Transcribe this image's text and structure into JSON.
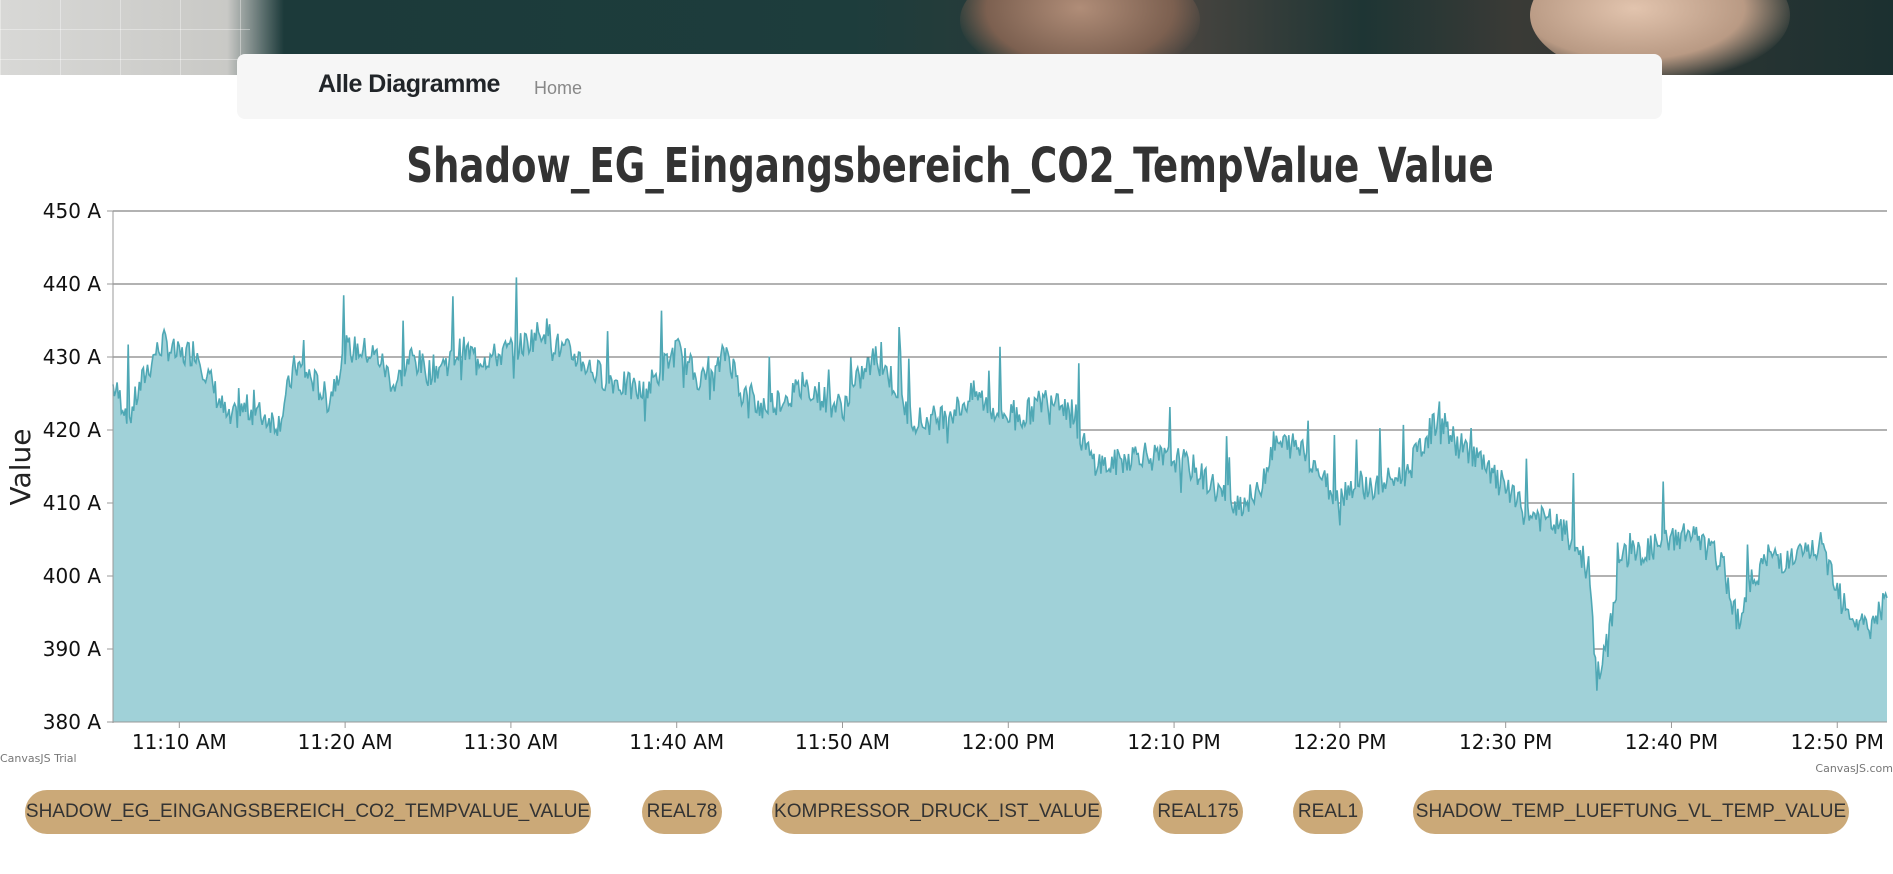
{
  "nav": {
    "brand": "Alle Diagramme",
    "home": "Home"
  },
  "chart_data": {
    "type": "area",
    "title": "Shadow_EG_Eingangsbereich_CO2_TempValue_Value",
    "ylabel": "Value",
    "xlabel": "",
    "ylim": [
      380,
      450
    ],
    "y_ticks": [
      "450 A",
      "440 A",
      "430 A",
      "420 A",
      "410 A",
      "400 A",
      "390 A",
      "380 A"
    ],
    "x_ticks": [
      "11:10 AM",
      "11:20 AM",
      "11:30 AM",
      "11:40 AM",
      "11:50 AM",
      "12:00 PM",
      "12:10 PM",
      "12:20 PM",
      "12:30 PM",
      "12:40 PM",
      "12:50 PM"
    ],
    "x_range": [
      "11:06 AM",
      "12:53 PM"
    ],
    "grid": true,
    "color": "#4fa8b5",
    "fill": "#a0d1d8",
    "series": [
      {
        "points": [
          [
            "11:06",
            426
          ],
          [
            "11:07",
            422
          ],
          [
            "11:08",
            428
          ],
          [
            "11:09",
            432
          ],
          [
            "11:10",
            430
          ],
          [
            "11:11",
            431
          ],
          [
            "11:12",
            426
          ],
          [
            "11:13",
            421
          ],
          [
            "11:14",
            423
          ],
          [
            "11:15",
            422
          ],
          [
            "11:16",
            421
          ],
          [
            "11:17",
            429
          ],
          [
            "11:18",
            427
          ],
          [
            "11:19",
            424
          ],
          [
            "11:20",
            431
          ],
          [
            "11:21",
            431
          ],
          [
            "11:22",
            430
          ],
          [
            "11:23",
            426
          ],
          [
            "11:24",
            430
          ],
          [
            "11:25",
            428
          ],
          [
            "11:26",
            429
          ],
          [
            "11:27",
            431
          ],
          [
            "11:28",
            430
          ],
          [
            "11:29",
            430
          ],
          [
            "11:30",
            431
          ],
          [
            "11:31",
            432
          ],
          [
            "11:32",
            434
          ],
          [
            "11:33",
            431
          ],
          [
            "11:34",
            430
          ],
          [
            "11:35",
            428
          ],
          [
            "11:36",
            427
          ],
          [
            "11:37",
            426
          ],
          [
            "11:38",
            425
          ],
          [
            "11:39",
            428
          ],
          [
            "11:40",
            431
          ],
          [
            "11:41",
            428
          ],
          [
            "11:42",
            426
          ],
          [
            "11:43",
            431
          ],
          [
            "11:44",
            425
          ],
          [
            "11:45",
            423
          ],
          [
            "11:46",
            424
          ],
          [
            "11:47",
            425
          ],
          [
            "11:48",
            426
          ],
          [
            "11:49",
            424
          ],
          [
            "11:50",
            423
          ],
          [
            "11:51",
            427
          ],
          [
            "11:52",
            430
          ],
          [
            "11:53",
            427
          ],
          [
            "11:54",
            422
          ],
          [
            "11:55",
            421
          ],
          [
            "11:56",
            422
          ],
          [
            "11:57",
            423
          ],
          [
            "11:58",
            425
          ],
          [
            "11:59",
            423
          ],
          [
            "12:00",
            422
          ],
          [
            "12:01",
            422
          ],
          [
            "12:02",
            424
          ],
          [
            "12:03",
            425
          ],
          [
            "12:04",
            421
          ],
          [
            "12:05",
            416
          ],
          [
            "12:06",
            415
          ],
          [
            "12:07",
            416
          ],
          [
            "12:08",
            417
          ],
          [
            "12:09",
            416
          ],
          [
            "12:10",
            416
          ],
          [
            "12:11",
            415
          ],
          [
            "12:12",
            413
          ],
          [
            "12:13",
            411
          ],
          [
            "12:14",
            410
          ],
          [
            "12:15",
            411
          ],
          [
            "12:16",
            418
          ],
          [
            "12:17",
            418
          ],
          [
            "12:18",
            417
          ],
          [
            "12:19",
            413
          ],
          [
            "12:20",
            411
          ],
          [
            "12:21",
            413
          ],
          [
            "12:22",
            412
          ],
          [
            "12:23",
            413
          ],
          [
            "12:24",
            414
          ],
          [
            "12:25",
            418
          ],
          [
            "12:26",
            422
          ],
          [
            "12:27",
            418
          ],
          [
            "12:28",
            417
          ],
          [
            "12:29",
            414
          ],
          [
            "12:30",
            412
          ],
          [
            "12:31",
            409
          ],
          [
            "12:32",
            408
          ],
          [
            "12:33",
            407
          ],
          [
            "12:34",
            405
          ],
          [
            "12:35",
            401
          ],
          [
            "12:35.5",
            386
          ],
          [
            "12:36",
            389
          ],
          [
            "12:37",
            403
          ],
          [
            "12:38",
            403
          ],
          [
            "12:39",
            404
          ],
          [
            "12:40",
            405
          ],
          [
            "12:41",
            406
          ],
          [
            "12:42",
            404
          ],
          [
            "12:43",
            402
          ],
          [
            "12:44",
            394
          ],
          [
            "12:45",
            400
          ],
          [
            "12:46",
            403
          ],
          [
            "12:47",
            402
          ],
          [
            "12:48",
            403
          ],
          [
            "12:49",
            404
          ],
          [
            "12:50",
            399
          ],
          [
            "12:51",
            394
          ],
          [
            "12:52",
            393
          ],
          [
            "12:53",
            397
          ]
        ]
      }
    ],
    "credits_left": "CanvasJS Trial",
    "credits_right": "CanvasJS.com"
  },
  "legend": [
    "SHADOW_EG_EINGANGSBEREICH_CO2_TEMPVALUE_VALUE",
    "REAL78",
    "KOMPRESSOR_DRUCK_IST_VALUE",
    "REAL175",
    "REAL1",
    "SHADOW_TEMP_LUEFTUNG_VL_TEMP_VALUE"
  ]
}
